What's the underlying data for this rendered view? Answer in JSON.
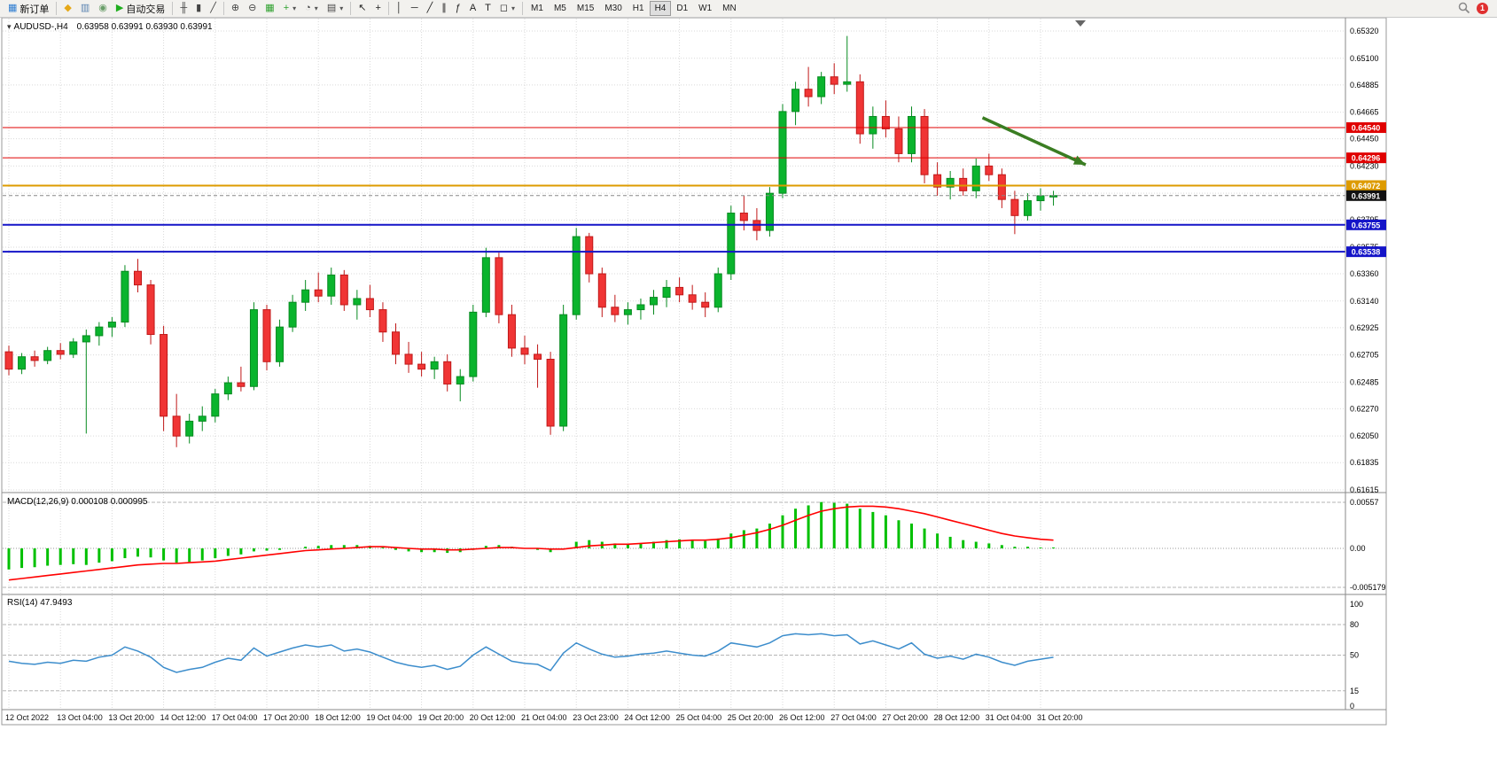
{
  "toolbar": {
    "items": [
      {
        "name": "new-order-button",
        "icon": "new-order-icon",
        "glyph": "▦",
        "color": "#2e7dd1",
        "label": "新订单"
      },
      {
        "type": "sep"
      },
      {
        "name": "alerts-button",
        "icon": "horn-icon",
        "glyph": "◆",
        "color": "#e6a817"
      },
      {
        "name": "market-watch-button",
        "icon": "market-watch-icon",
        "glyph": "▥",
        "color": "#5b84b1"
      },
      {
        "name": "data-window-button",
        "icon": "data-window-icon",
        "glyph": "◉",
        "color": "#6a9e6a"
      },
      {
        "name": "autotrading-button",
        "icon": "autotrade-play-icon",
        "glyph": "▶",
        "color": "#1fae1f",
        "label": "自动交易"
      },
      {
        "type": "sep"
      },
      {
        "name": "bar-chart-button",
        "icon": "ohlc-bars-icon",
        "glyph": "╫",
        "color": "#444444"
      },
      {
        "name": "candlestick-chart-button",
        "icon": "candlestick-icon",
        "glyph": "▮",
        "color": "#444444"
      },
      {
        "name": "line-chart-button",
        "icon": "line-chart-icon",
        "glyph": "╱",
        "color": "#444444"
      },
      {
        "type": "sep"
      },
      {
        "name": "zoom-in-button",
        "icon": "zoom-in-icon",
        "glyph": "⊕",
        "color": "#444444"
      },
      {
        "name": "zoom-out-button",
        "icon": "zoom-out-icon",
        "glyph": "⊖",
        "color": "#444444"
      },
      {
        "name": "tile-windows-button",
        "icon": "tile-windows-icon",
        "glyph": "▦",
        "color": "#2ca02c"
      },
      {
        "name": "indicators-button",
        "icon": "indicators-plus-icon",
        "glyph": "+",
        "color": "#2ca02c",
        "dropdown": true
      },
      {
        "name": "periods-button",
        "icon": "clock-icon",
        "glyph": "◔",
        "color": "#444444",
        "dropdown": true
      },
      {
        "name": "templates-button",
        "icon": "template-icon",
        "glyph": "▤",
        "color": "#444444",
        "dropdown": true
      },
      {
        "type": "sep"
      },
      {
        "name": "cursor-button",
        "icon": "cursor-icon",
        "glyph": "↖",
        "color": "#222222"
      },
      {
        "name": "crosshair-button",
        "icon": "crosshair-icon",
        "glyph": "+",
        "color": "#222222"
      },
      {
        "type": "sep"
      },
      {
        "name": "vertical-line-button",
        "icon": "vertical-line-icon",
        "glyph": "│",
        "color": "#222222"
      },
      {
        "name": "horizontal-line-button",
        "icon": "horizontal-line-icon",
        "glyph": "─",
        "color": "#222222"
      },
      {
        "name": "trendline-button",
        "icon": "trendline-icon",
        "glyph": "╱",
        "color": "#222222"
      },
      {
        "name": "equidistant-channel-button",
        "icon": "channel-icon",
        "glyph": "∥",
        "color": "#222222"
      },
      {
        "name": "fibonacci-button",
        "icon": "fibonacci-icon",
        "glyph": "ƒ",
        "color": "#222222"
      },
      {
        "name": "text-button",
        "icon": "text-icon",
        "glyph": "A",
        "color": "#222222"
      },
      {
        "name": "text-label-button",
        "icon": "text-label-icon",
        "glyph": "T",
        "color": "#222222"
      },
      {
        "name": "arrows-button",
        "icon": "shapes-icon",
        "glyph": "◻",
        "color": "#222222",
        "dropdown": true
      },
      {
        "type": "sep"
      }
    ],
    "timeframes": [
      "M1",
      "M5",
      "M15",
      "M30",
      "H1",
      "H4",
      "D1",
      "W1",
      "MN"
    ],
    "active_timeframe": "H4",
    "notification_count": "1"
  },
  "window": {
    "symbol_title": "AUDUSD-,H4",
    "ohlc_display": "0.63958 0.63991 0.63930 0.63991"
  },
  "chart_data": {
    "type": "candlestick",
    "symbol": "AUDUSD",
    "timeframe": "H4",
    "price_min": 0.61615,
    "price_max": 0.6532,
    "price_axis_labels": [
      "0.65320",
      "0.65100",
      "0.64885",
      "0.64665",
      "0.64450",
      "0.64230",
      "0.64010",
      "0.63795",
      "0.63575",
      "0.63360",
      "0.63140",
      "0.62925",
      "0.62705",
      "0.62485",
      "0.62270",
      "0.62050",
      "0.61835",
      "0.61615"
    ],
    "time_labels": [
      "12 Oct 2022",
      "13 Oct 04:00",
      "13 Oct 20:00",
      "14 Oct 12:00",
      "17 Oct 04:00",
      "17 Oct 20:00",
      "18 Oct 12:00",
      "19 Oct 04:00",
      "19 Oct 20:00",
      "20 Oct 12:00",
      "21 Oct 04:00",
      "23 Oct 23:00",
      "24 Oct 12:00",
      "25 Oct 04:00",
      "25 Oct 20:00",
      "26 Oct 12:00",
      "27 Oct 04:00",
      "27 Oct 20:00",
      "28 Oct 12:00",
      "31 Oct 04:00",
      "31 Oct 20:00"
    ],
    "candles": [
      [
        0.6273,
        0.6278,
        0.6254,
        0.6259
      ],
      [
        0.6259,
        0.6272,
        0.6255,
        0.6269
      ],
      [
        0.6269,
        0.6274,
        0.6261,
        0.6266
      ],
      [
        0.6266,
        0.6277,
        0.6263,
        0.6274
      ],
      [
        0.6274,
        0.628,
        0.6267,
        0.6271
      ],
      [
        0.6271,
        0.6284,
        0.6268,
        0.6281
      ],
      [
        0.6281,
        0.6291,
        0.6207,
        0.6286
      ],
      [
        0.6286,
        0.6297,
        0.6278,
        0.6293
      ],
      [
        0.6293,
        0.6301,
        0.6285,
        0.6297
      ],
      [
        0.6297,
        0.6343,
        0.6293,
        0.6338
      ],
      [
        0.6338,
        0.6348,
        0.6321,
        0.6327
      ],
      [
        0.6327,
        0.6331,
        0.6279,
        0.6287
      ],
      [
        0.6287,
        0.6294,
        0.6209,
        0.6221
      ],
      [
        0.6221,
        0.6239,
        0.6196,
        0.6205
      ],
      [
        0.6205,
        0.6223,
        0.6199,
        0.6217
      ],
      [
        0.6217,
        0.6229,
        0.6209,
        0.6221
      ],
      [
        0.6221,
        0.6243,
        0.6216,
        0.6239
      ],
      [
        0.6239,
        0.6253,
        0.6234,
        0.6248
      ],
      [
        0.6248,
        0.6261,
        0.6241,
        0.6245
      ],
      [
        0.6245,
        0.6313,
        0.6242,
        0.6307
      ],
      [
        0.6307,
        0.6311,
        0.6258,
        0.6265
      ],
      [
        0.6265,
        0.6299,
        0.6261,
        0.6293
      ],
      [
        0.6293,
        0.6319,
        0.6289,
        0.6313
      ],
      [
        0.6313,
        0.6331,
        0.6306,
        0.6323
      ],
      [
        0.6323,
        0.6337,
        0.6313,
        0.6318
      ],
      [
        0.6318,
        0.6341,
        0.6311,
        0.6335
      ],
      [
        0.6335,
        0.6339,
        0.6306,
        0.6311
      ],
      [
        0.6311,
        0.6323,
        0.6299,
        0.6316
      ],
      [
        0.6316,
        0.6327,
        0.6301,
        0.6307
      ],
      [
        0.6307,
        0.6313,
        0.6281,
        0.6289
      ],
      [
        0.6289,
        0.6296,
        0.6263,
        0.6271
      ],
      [
        0.6271,
        0.6281,
        0.6256,
        0.6263
      ],
      [
        0.6263,
        0.6273,
        0.6253,
        0.6259
      ],
      [
        0.6259,
        0.6269,
        0.6251,
        0.6265
      ],
      [
        0.6265,
        0.6271,
        0.6241,
        0.6247
      ],
      [
        0.6247,
        0.6259,
        0.6233,
        0.6253
      ],
      [
        0.6253,
        0.6311,
        0.6249,
        0.6305
      ],
      [
        0.6305,
        0.6357,
        0.6301,
        0.6349
      ],
      [
        0.6349,
        0.6353,
        0.6296,
        0.6303
      ],
      [
        0.6303,
        0.6311,
        0.6269,
        0.6276
      ],
      [
        0.6276,
        0.6286,
        0.6263,
        0.6271
      ],
      [
        0.6271,
        0.6279,
        0.6244,
        0.6267
      ],
      [
        0.6267,
        0.6273,
        0.6206,
        0.6213
      ],
      [
        0.6213,
        0.6311,
        0.6209,
        0.6303
      ],
      [
        0.6303,
        0.6373,
        0.6299,
        0.6366
      ],
      [
        0.6366,
        0.6369,
        0.6329,
        0.6336
      ],
      [
        0.6336,
        0.6341,
        0.6301,
        0.6309
      ],
      [
        0.6309,
        0.6319,
        0.6297,
        0.6303
      ],
      [
        0.6303,
        0.6313,
        0.6295,
        0.6307
      ],
      [
        0.6307,
        0.6316,
        0.6299,
        0.6311
      ],
      [
        0.6311,
        0.6323,
        0.6303,
        0.6317
      ],
      [
        0.6317,
        0.6331,
        0.6309,
        0.6325
      ],
      [
        0.6325,
        0.6333,
        0.6313,
        0.6319
      ],
      [
        0.6319,
        0.6327,
        0.6307,
        0.6313
      ],
      [
        0.6313,
        0.6321,
        0.6301,
        0.6309
      ],
      [
        0.6309,
        0.6341,
        0.6305,
        0.6336
      ],
      [
        0.6336,
        0.6391,
        0.6331,
        0.6385
      ],
      [
        0.6385,
        0.6399,
        0.6371,
        0.6379
      ],
      [
        0.6379,
        0.6389,
        0.6363,
        0.6371
      ],
      [
        0.6371,
        0.6406,
        0.6366,
        0.6401
      ],
      [
        0.6401,
        0.6473,
        0.6397,
        0.6467
      ],
      [
        0.6467,
        0.6491,
        0.6456,
        0.6485
      ],
      [
        0.6485,
        0.6503,
        0.6471,
        0.6479
      ],
      [
        0.6479,
        0.6499,
        0.6473,
        0.6495
      ],
      [
        0.6495,
        0.6506,
        0.6481,
        0.6489
      ],
      [
        0.6489,
        0.6528,
        0.6483,
        0.6491
      ],
      [
        0.6491,
        0.6497,
        0.6441,
        0.6449
      ],
      [
        0.6449,
        0.6471,
        0.6437,
        0.6463
      ],
      [
        0.6463,
        0.6476,
        0.6446,
        0.6453
      ],
      [
        0.6453,
        0.6463,
        0.6426,
        0.6433
      ],
      [
        0.6433,
        0.6471,
        0.6426,
        0.6463
      ],
      [
        0.6463,
        0.6469,
        0.6409,
        0.6416
      ],
      [
        0.6416,
        0.6426,
        0.6399,
        0.6406
      ],
      [
        0.6406,
        0.6419,
        0.6396,
        0.6413
      ],
      [
        0.6413,
        0.6421,
        0.6399,
        0.6403
      ],
      [
        0.6403,
        0.6429,
        0.6397,
        0.6423
      ],
      [
        0.6423,
        0.6433,
        0.6411,
        0.6416
      ],
      [
        0.6416,
        0.6421,
        0.6389,
        0.6396
      ],
      [
        0.6396,
        0.6403,
        0.6368,
        0.6383
      ],
      [
        0.6383,
        0.6401,
        0.6379,
        0.6395
      ],
      [
        0.6395,
        0.6405,
        0.6387,
        0.6399
      ],
      [
        0.6399,
        0.6403,
        0.6391,
        0.63991
      ]
    ],
    "hlines": [
      {
        "price": 0.6454,
        "label": "0.64540",
        "color": "#e00000",
        "width": 1
      },
      {
        "price": 0.64296,
        "label": "0.64296",
        "color": "#e00000",
        "width": 1
      },
      {
        "price": 0.64072,
        "label": "0.64072",
        "color": "#dd9b00",
        "width": 2
      },
      {
        "price": 0.63755,
        "label": "0.63755",
        "color": "#1414c8",
        "width": 2
      },
      {
        "price": 0.63538,
        "label": "0.63538",
        "color": "#1414c8",
        "width": 2
      }
    ],
    "current_price": {
      "value": 0.63991,
      "label": "0.63991",
      "tag_color": "#111111"
    },
    "trend_arrow": {
      "from_index": 75.5,
      "from_price": 0.6462,
      "to_index": 83.5,
      "to_price": 0.6424,
      "color": "#3a7d22"
    },
    "colors": {
      "bull": "#0ab42d",
      "bull_stroke": "#078a20",
      "bear": "#f03535",
      "bear_stroke": "#c01818",
      "grid": "#d9d9d9",
      "background": "#ffffff"
    }
  },
  "macd": {
    "header": "MACD(12,26,9) 0.000108 0.000995",
    "axis_labels": [
      "0.00557",
      "0.00",
      "-0.005179"
    ],
    "max": 0.00557,
    "min": -0.005179,
    "histogram_color": "#00c000",
    "signal_color": "#ff0000",
    "histogram": [
      -0.0028,
      -0.0026,
      -0.0025,
      -0.0023,
      -0.0022,
      -0.0021,
      -0.0022,
      -0.0019,
      -0.0017,
      -0.0013,
      -0.0011,
      -0.0012,
      -0.0016,
      -0.0019,
      -0.0018,
      -0.0016,
      -0.0013,
      -0.001,
      -0.0008,
      -0.0004,
      -0.0003,
      -0.0002,
      0.0,
      0.0002,
      0.0003,
      0.0004,
      0.0004,
      0.0004,
      0.0003,
      0.0001,
      -0.0002,
      -0.0004,
      -0.0005,
      -0.0005,
      -0.0006,
      -0.0005,
      -0.0002,
      0.0003,
      0.0004,
      0.0002,
      0.0,
      -0.0002,
      -0.0005,
      0.0,
      0.0008,
      0.001,
      0.0008,
      0.0006,
      0.0005,
      0.0006,
      0.0008,
      0.001,
      0.0011,
      0.001,
      0.0009,
      0.0012,
      0.0018,
      0.0022,
      0.0024,
      0.003,
      0.004,
      0.0048,
      0.0052,
      0.0056,
      0.0055,
      0.0054,
      0.0048,
      0.0044,
      0.004,
      0.0034,
      0.003,
      0.0024,
      0.0018,
      0.0014,
      0.001,
      0.0008,
      0.0006,
      0.0004,
      0.0002,
      0.0002,
      0.0001,
      0.000108
    ],
    "signal": [
      -0.0042,
      -0.004,
      -0.0038,
      -0.0036,
      -0.0034,
      -0.0032,
      -0.003,
      -0.0028,
      -0.0026,
      -0.0024,
      -0.0022,
      -0.0021,
      -0.002,
      -0.002,
      -0.0019,
      -0.0018,
      -0.0017,
      -0.0015,
      -0.0013,
      -0.0011,
      -0.0009,
      -0.0007,
      -0.0005,
      -0.0003,
      -0.0002,
      -0.0001,
      0.0,
      0.0001,
      0.0002,
      0.0002,
      0.0001,
      0.0,
      -0.0001,
      -0.0001,
      -0.0002,
      -0.0002,
      -0.0001,
      0.0,
      0.0001,
      0.0001,
      0.0,
      0.0,
      -0.0001,
      -0.0001,
      0.0001,
      0.0003,
      0.0004,
      0.0005,
      0.0005,
      0.0006,
      0.0007,
      0.0008,
      0.0009,
      0.001,
      0.001,
      0.0011,
      0.0013,
      0.0016,
      0.0019,
      0.0023,
      0.0028,
      0.0034,
      0.004,
      0.0045,
      0.0048,
      0.005,
      0.0051,
      0.0051,
      0.005,
      0.0048,
      0.0045,
      0.0042,
      0.0038,
      0.0034,
      0.003,
      0.0026,
      0.0022,
      0.0018,
      0.0015,
      0.0013,
      0.0011,
      0.000995
    ]
  },
  "rsi": {
    "header": "RSI(14) 47.9493",
    "axis_labels": [
      "100",
      "80",
      "50",
      "15",
      "0"
    ],
    "axis_values": [
      100,
      80,
      50,
      15,
      0
    ],
    "levels": [
      80,
      50,
      15
    ],
    "line_color": "#3c8dcc",
    "values": [
      44,
      42,
      41,
      43,
      42,
      45,
      44,
      48,
      50,
      58,
      54,
      48,
      38,
      33,
      36,
      38,
      43,
      47,
      45,
      57,
      49,
      53,
      57,
      60,
      58,
      60,
      54,
      56,
      53,
      48,
      43,
      40,
      38,
      40,
      36,
      39,
      50,
      58,
      51,
      44,
      42,
      41,
      35,
      52,
      62,
      56,
      51,
      48,
      49,
      51,
      52,
      54,
      52,
      50,
      49,
      54,
      62,
      60,
      58,
      62,
      69,
      71,
      70,
      71,
      69,
      70,
      61,
      64,
      60,
      56,
      62,
      51,
      47,
      49,
      46,
      51,
      48,
      43,
      40,
      44,
      46,
      47.9
    ]
  }
}
